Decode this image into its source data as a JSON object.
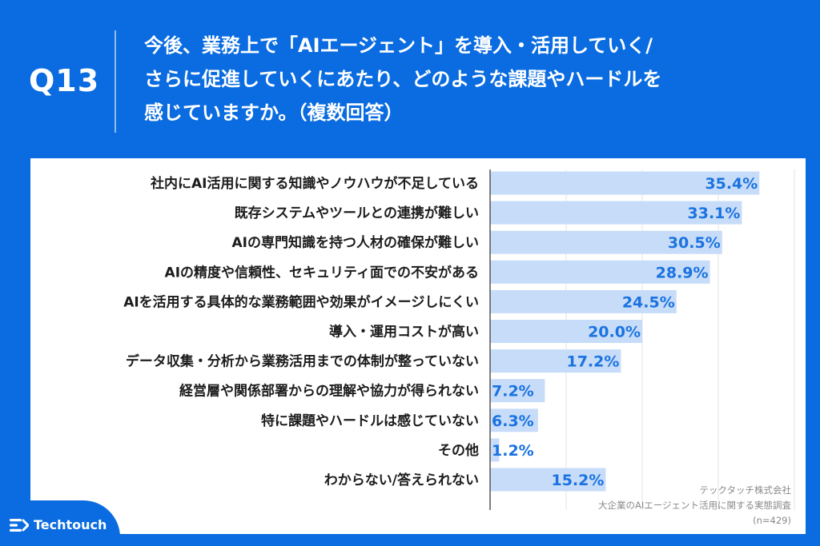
{
  "header": {
    "question_label": "Q13",
    "question_text": "今後、業務上で「AIエージェント」を導入・活用していく/\nさらに促進していくにあたり、どのような課題やハードルを\n感じていますか。（複数回答）"
  },
  "chart_data": {
    "type": "bar",
    "orientation": "horizontal",
    "categories": [
      "社内にAI活用に関する知識やノウハウが不足している",
      "既存システムやツールとの連携が難しい",
      "AIの専門知識を持つ人材の確保が難しい",
      "AIの精度や信頼性、セキュリティ面での不安がある",
      "AIを活用する具体的な業務範囲や効果がイメージしにくい",
      "導入・運用コストが高い",
      "データ収集・分析から業務活用までの体制が整っていない",
      "経営層や関係部署からの理解や協力が得られない",
      "特に課題やハードルは感じていない",
      "その他",
      "わからない/答えられない"
    ],
    "values": [
      35.4,
      33.1,
      30.5,
      28.9,
      24.5,
      20.0,
      17.2,
      7.2,
      6.3,
      1.2,
      15.2
    ],
    "value_labels": [
      "35.4%",
      "33.1%",
      "30.5%",
      "28.9%",
      "24.5%",
      "20.0%",
      "17.2%",
      "7.2%",
      "6.3%",
      "1.2%",
      "15.2%"
    ],
    "xlim": [
      0,
      40
    ],
    "grid": true,
    "bar_color": "#c7dcf8",
    "label_color": "#1a73e0"
  },
  "source": {
    "line1": "テックタッチ株式会社",
    "line2": "大企業のAIエージェント活用に関する実態調査",
    "line3": "(n=429)"
  },
  "logo": {
    "text": "Techtouch",
    "icon": "techtouch-logo-icon"
  },
  "colors": {
    "brand": "#0a6ce0",
    "panel": "#ffffff"
  }
}
